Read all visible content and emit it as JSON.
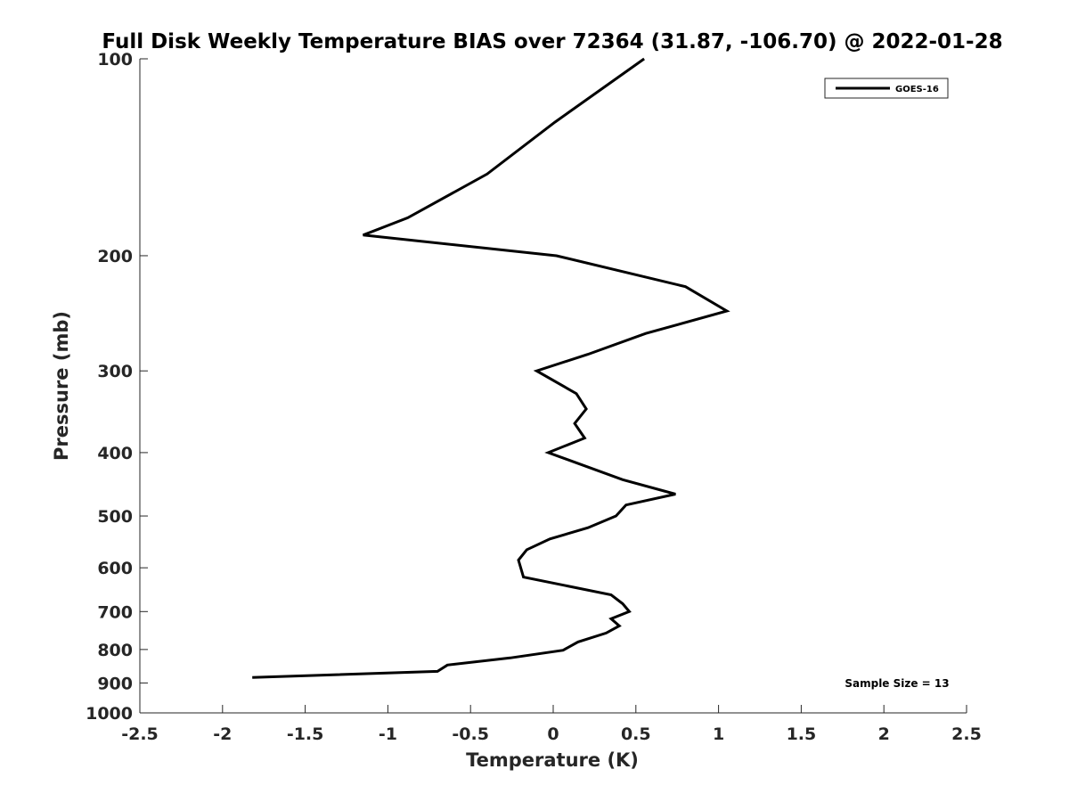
{
  "chart_data": {
    "type": "line",
    "title": "Full Disk Weekly Temperature BIAS over 72364 (31.87, -106.70) @ 2022-01-28",
    "xlabel": "Temperature (K)",
    "ylabel": "Pressure (mb)",
    "xlim": [
      -2.5,
      2.5
    ],
    "ylim": [
      1000,
      100
    ],
    "y_scale": "log",
    "y_reversed": true,
    "grid": false,
    "x_ticks": [
      -2.5,
      -2,
      -1.5,
      -1,
      -0.5,
      0,
      0.5,
      1,
      1.5,
      2,
      2.5
    ],
    "x_tick_labels": [
      "-2.5",
      "-2",
      "-1.5",
      "-1",
      "-0.5",
      "0",
      "0.5",
      "1",
      "1.5",
      "2",
      "2.5"
    ],
    "y_ticks": [
      100,
      200,
      300,
      400,
      500,
      600,
      700,
      800,
      900,
      1000
    ],
    "y_tick_labels": [
      "100",
      "200",
      "300",
      "400",
      "500",
      "600",
      "700",
      "800",
      "900",
      "1000"
    ],
    "legend": {
      "placement": "top-right",
      "entries": [
        "GOES-16"
      ]
    },
    "annotation": "Sample Size = 13",
    "series": [
      {
        "name": "GOES-16",
        "color": "#000000",
        "points": [
          {
            "t": 0.55,
            "p": 100
          },
          {
            "t": 0.01,
            "p": 125
          },
          {
            "t": -0.4,
            "p": 150
          },
          {
            "t": -0.88,
            "p": 175
          },
          {
            "t": -1.15,
            "p": 186
          },
          {
            "t": 0.02,
            "p": 200
          },
          {
            "t": 0.8,
            "p": 223
          },
          {
            "t": 1.05,
            "p": 243
          },
          {
            "t": 0.56,
            "p": 263
          },
          {
            "t": 0.21,
            "p": 283
          },
          {
            "t": -0.1,
            "p": 300
          },
          {
            "t": 0.14,
            "p": 325
          },
          {
            "t": 0.2,
            "p": 343
          },
          {
            "t": 0.13,
            "p": 361
          },
          {
            "t": 0.19,
            "p": 380
          },
          {
            "t": -0.03,
            "p": 400
          },
          {
            "t": 0.42,
            "p": 440
          },
          {
            "t": 0.74,
            "p": 463
          },
          {
            "t": 0.44,
            "p": 481
          },
          {
            "t": 0.38,
            "p": 500
          },
          {
            "t": 0.21,
            "p": 521
          },
          {
            "t": -0.02,
            "p": 542
          },
          {
            "t": -0.16,
            "p": 563
          },
          {
            "t": -0.21,
            "p": 584
          },
          {
            "t": -0.18,
            "p": 620
          },
          {
            "t": 0.35,
            "p": 660
          },
          {
            "t": 0.42,
            "p": 681
          },
          {
            "t": 0.46,
            "p": 700
          },
          {
            "t": 0.35,
            "p": 718
          },
          {
            "t": 0.4,
            "p": 736
          },
          {
            "t": 0.32,
            "p": 755
          },
          {
            "t": 0.15,
            "p": 779
          },
          {
            "t": 0.06,
            "p": 802
          },
          {
            "t": -0.26,
            "p": 824
          },
          {
            "t": -0.64,
            "p": 845
          },
          {
            "t": -0.7,
            "p": 864
          },
          {
            "t": -1.82,
            "p": 883
          }
        ]
      }
    ]
  }
}
